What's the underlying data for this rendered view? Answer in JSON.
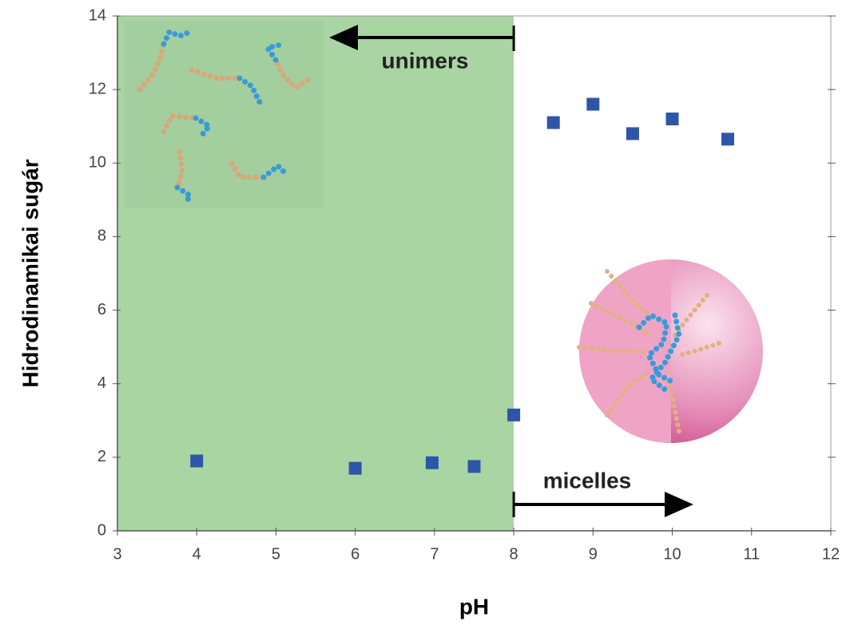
{
  "chart_data": {
    "type": "scatter",
    "x_label": "pH",
    "y_label": "Hidrodinamikai sugár",
    "x": [
      4,
      6,
      6.97,
      7.5,
      8,
      8.5,
      9,
      9.5,
      10,
      10.7
    ],
    "values": [
      1.9,
      1.7,
      1.85,
      1.75,
      3.15,
      11.1,
      11.6,
      10.8,
      11.2,
      10.65
    ],
    "color": "#2e56a8",
    "xlim": [
      3,
      12
    ],
    "xticks": [
      3,
      4,
      5,
      6,
      7,
      8,
      9,
      10,
      11,
      12
    ],
    "ylim": [
      0,
      14
    ],
    "yticks": [
      0,
      2,
      4,
      6,
      8,
      10,
      12,
      14
    ],
    "grid": false,
    "shaded_region": {
      "x": [
        3,
        8
      ],
      "color": "#a9d5a3"
    },
    "annotations": [
      "unimers",
      "micelles"
    ]
  }
}
